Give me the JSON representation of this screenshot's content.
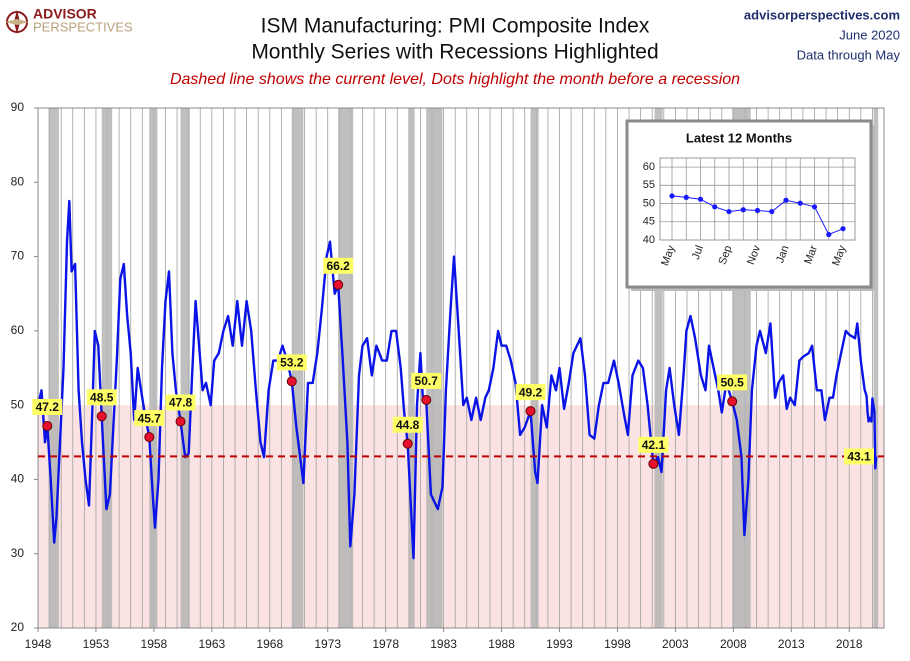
{
  "header": {
    "logo_1": "ADVISOR",
    "logo_2": "PERSPECTIVES",
    "site": "advisorperspectives.com",
    "date": "June 2020",
    "through": "Data through May"
  },
  "chart_data": [
    {
      "type": "line",
      "title": [
        "ISM Manufacturing: PMI Composite Index",
        "Monthly Series with Recessions Highlighted"
      ],
      "annotation": "Dashed line shows the current level, Dots highlight the month before a recession",
      "color": "#0a14e6",
      "x": [
        1948.0,
        1948.3,
        1948.6,
        1948.8,
        1949.1,
        1949.4,
        1949.6,
        1949.9,
        1950.2,
        1950.5,
        1950.7,
        1950.9,
        1951.2,
        1951.5,
        1951.8,
        1952.1,
        1952.4,
        1952.7,
        1952.9,
        1953.2,
        1953.5,
        1953.9,
        1954.2,
        1954.5,
        1954.8,
        1955.1,
        1955.4,
        1955.7,
        1956.0,
        1956.3,
        1956.6,
        1956.9,
        1957.2,
        1957.6,
        1957.9,
        1958.1,
        1958.4,
        1958.7,
        1959.0,
        1959.3,
        1959.6,
        1959.9,
        1960.3,
        1960.7,
        1961.0,
        1961.3,
        1961.6,
        1961.9,
        1962.2,
        1962.5,
        1962.9,
        1963.2,
        1963.6,
        1964.0,
        1964.4,
        1964.8,
        1965.2,
        1965.6,
        1966.0,
        1966.4,
        1966.8,
        1967.2,
        1967.5,
        1967.9,
        1968.3,
        1968.7,
        1969.1,
        1969.5,
        1969.9,
        1970.3,
        1970.7,
        1970.9,
        1971.3,
        1971.7,
        1972.1,
        1972.5,
        1972.9,
        1973.2,
        1973.6,
        1973.9,
        1974.3,
        1974.7,
        1974.95,
        1975.3,
        1975.7,
        1976.0,
        1976.4,
        1976.8,
        1977.2,
        1977.7,
        1978.1,
        1978.5,
        1978.9,
        1979.3,
        1979.6,
        1979.9,
        1980.4,
        1980.7,
        1981.0,
        1981.2,
        1981.5,
        1981.9,
        1982.2,
        1982.5,
        1982.9,
        1983.2,
        1983.6,
        1983.9,
        1984.3,
        1984.7,
        1985.0,
        1985.4,
        1985.8,
        1986.2,
        1986.6,
        1986.9,
        1987.3,
        1987.7,
        1988.0,
        1988.4,
        1988.8,
        1989.2,
        1989.6,
        1990.0,
        1990.5,
        1990.9,
        1991.1,
        1991.5,
        1991.9,
        1992.3,
        1992.7,
        1993.0,
        1993.4,
        1993.8,
        1994.2,
        1994.8,
        1995.2,
        1995.6,
        1996.0,
        1996.4,
        1996.8,
        1997.2,
        1997.7,
        1998.1,
        1998.6,
        1998.9,
        1999.3,
        1999.8,
        2000.2,
        2000.6,
        2000.9,
        2001.1,
        2001.5,
        2001.8,
        2002.2,
        2002.5,
        2002.9,
        2003.3,
        2003.7,
        2003.95,
        2004.3,
        2004.7,
        2005.2,
        2005.6,
        2005.9,
        2006.3,
        2006.7,
        2007.0,
        2007.4,
        2007.9,
        2008.3,
        2008.7,
        2008.95,
        2009.3,
        2009.6,
        2010.0,
        2010.3,
        2010.8,
        2011.2,
        2011.6,
        2011.9,
        2012.3,
        2012.6,
        2012.9,
        2013.3,
        2013.7,
        2014.0,
        2014.5,
        2014.8,
        2015.2,
        2015.6,
        2015.9,
        2016.3,
        2016.6,
        2016.9,
        2017.3,
        2017.7,
        2018.0,
        2018.5,
        2018.7,
        2019.0,
        2019.33,
        2019.5,
        2019.58,
        2019.67,
        2019.75,
        2019.92,
        2020.0,
        2020.08,
        2020.17,
        2020.25,
        2020.33
      ],
      "values": [
        50,
        52,
        45,
        47.2,
        40,
        31.5,
        35,
        45,
        55,
        72,
        77.5,
        68,
        69,
        52,
        45,
        40,
        36.5,
        50,
        60,
        58,
        48.5,
        36,
        38,
        47,
        56,
        67,
        69,
        62,
        57,
        48,
        55,
        52,
        49,
        45.7,
        38,
        33.5,
        40,
        55,
        64,
        68,
        57,
        52,
        47.8,
        43,
        43.5,
        54,
        64,
        58,
        52,
        53,
        50,
        56,
        57,
        60,
        62,
        58,
        64,
        58,
        64,
        60,
        52,
        45,
        43,
        52,
        56,
        56,
        58,
        56,
        53.2,
        47,
        42,
        39.5,
        53,
        53,
        57,
        63,
        70,
        72,
        65,
        66.2,
        56,
        45,
        31,
        38,
        54,
        58,
        59,
        54,
        58,
        56,
        56,
        60,
        60,
        55,
        49,
        44.8,
        29.4,
        50,
        57,
        51,
        50.7,
        38,
        37,
        36,
        39,
        52,
        63,
        70,
        60,
        50,
        51,
        48,
        51,
        48,
        51,
        52,
        55,
        60,
        58,
        58,
        56,
        53,
        46,
        47,
        49.2,
        41,
        39.5,
        50,
        47,
        54,
        52,
        55,
        49.5,
        53,
        57,
        59,
        54,
        46,
        45.5,
        50,
        53,
        53,
        56,
        53,
        48.5,
        46,
        54,
        56,
        55,
        50,
        45,
        42.1,
        43,
        41,
        52,
        55,
        50,
        46,
        54,
        60,
        62,
        59,
        54,
        52,
        58,
        55,
        52,
        49,
        53,
        50.5,
        48,
        43,
        32.5,
        40,
        52,
        58,
        60,
        57,
        61,
        51,
        53,
        54,
        49.5,
        51,
        50,
        56,
        56.5,
        57,
        58,
        52,
        52,
        48,
        51,
        51,
        54,
        57,
        60,
        59.5,
        59,
        61,
        56,
        52.1,
        51.2,
        49.1,
        47.8,
        48.3,
        47.8,
        50.9,
        50.1,
        49.1,
        41.5,
        43.1
      ],
      "xlim": [
        1948,
        2021
      ],
      "xticks": [
        1948,
        1953,
        1958,
        1963,
        1968,
        1973,
        1978,
        1983,
        1988,
        1993,
        1998,
        2003,
        2008,
        2013,
        2018
      ],
      "minor_xgrid": [
        1949,
        1950,
        1951,
        1952,
        1953,
        1954,
        1955,
        1956,
        1957,
        1958,
        1959,
        1960,
        1961,
        1962,
        1963,
        1964,
        1965,
        1966,
        1967,
        1968,
        1969,
        1970,
        1971,
        1972,
        1973,
        1974,
        1975,
        1976,
        1977,
        1978,
        1979,
        1980,
        1981,
        1982,
        1983,
        1984,
        1985,
        1986,
        1987,
        1988,
        1989,
        1990,
        1991,
        1992,
        1993,
        1994,
        1995,
        1996,
        1997,
        1998,
        1999,
        2000,
        2001,
        2002,
        2003,
        2004,
        2005,
        2006,
        2007,
        2008,
        2009,
        2010,
        2011,
        2012,
        2013,
        2014,
        2015,
        2016,
        2017,
        2018,
        2019,
        2020
      ],
      "ylim": [
        20,
        90
      ],
      "yticks": [
        20,
        30,
        40,
        50,
        60,
        70,
        80,
        90
      ],
      "recessions": [
        [
          1948.9,
          1949.8
        ],
        [
          1953.5,
          1954.4
        ],
        [
          1957.6,
          1958.3
        ],
        [
          1960.3,
          1961.1
        ],
        [
          1969.9,
          1970.9
        ],
        [
          1973.9,
          1975.2
        ],
        [
          1980.0,
          1980.5
        ],
        [
          1981.5,
          1982.9
        ],
        [
          1990.5,
          1991.2
        ],
        [
          2001.2,
          2001.9
        ],
        [
          2007.9,
          2009.5
        ],
        [
          2020.1,
          2020.5
        ]
      ],
      "recession_color": "#b4b4b4",
      "shade_below": 50,
      "shade_color": "#fbe3e3",
      "recession_points": {
        "x": [
          1948.8,
          1953.5,
          1957.6,
          1960.3,
          1969.9,
          1973.9,
          1979.9,
          1981.5,
          1990.5,
          2001.1,
          2007.9
        ],
        "values": [
          47.2,
          48.5,
          45.7,
          47.8,
          53.2,
          66.2,
          44.8,
          50.7,
          49.2,
          42.1,
          50.5
        ],
        "color": "#e8112d"
      },
      "current_level": 43.1,
      "current_level_color": "#c00000"
    },
    {
      "type": "line",
      "title": "Latest 12 Months",
      "color": "#1a1aff",
      "categories": [
        "May",
        null,
        "Jul",
        null,
        "Sep",
        null,
        "Nov",
        null,
        "Jan",
        null,
        "Mar",
        null,
        "May"
      ],
      "values": [
        52.1,
        51.7,
        51.2,
        49.1,
        47.8,
        48.3,
        48.1,
        47.8,
        50.9,
        50.1,
        49.1,
        41.5,
        43.1
      ],
      "ylim": [
        40,
        62.5
      ],
      "yticks": [
        40,
        45,
        50,
        55,
        60
      ],
      "grid": true
    }
  ]
}
